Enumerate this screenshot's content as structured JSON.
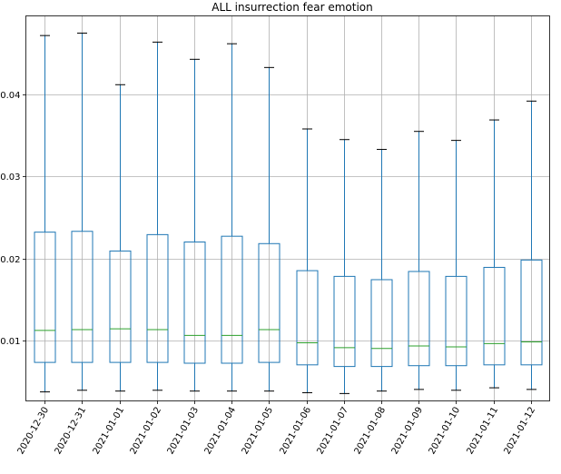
{
  "chart_data": {
    "type": "box",
    "title": "ALL insurrection fear emotion",
    "xlabel": "",
    "ylabel": "",
    "grid": true,
    "ylim": [
      0.0026,
      0.0496
    ],
    "yticks": [
      0.01,
      0.02,
      0.03,
      0.04
    ],
    "ytick_labels": [
      "0.01",
      "0.02",
      "0.03",
      "0.04"
    ],
    "categories": [
      "2020-12-30",
      "2020-12-31",
      "2021-01-01",
      "2021-01-02",
      "2021-01-03",
      "2021-01-04",
      "2021-01-05",
      "2021-01-06",
      "2021-01-07",
      "2021-01-08",
      "2021-01-09",
      "2021-01-10",
      "2021-01-11",
      "2021-01-12"
    ],
    "boxes": [
      {
        "whisker_low": 0.0037,
        "q1": 0.0073,
        "median": 0.0112,
        "q3": 0.0232,
        "whisker_high": 0.0472
      },
      {
        "whisker_low": 0.0039,
        "q1": 0.0073,
        "median": 0.0113,
        "q3": 0.0233,
        "whisker_high": 0.0475
      },
      {
        "whisker_low": 0.0038,
        "q1": 0.0073,
        "median": 0.0114,
        "q3": 0.0209,
        "whisker_high": 0.0412
      },
      {
        "whisker_low": 0.0039,
        "q1": 0.0073,
        "median": 0.0113,
        "q3": 0.0229,
        "whisker_high": 0.0464
      },
      {
        "whisker_low": 0.0038,
        "q1": 0.0072,
        "median": 0.0106,
        "q3": 0.022,
        "whisker_high": 0.0443
      },
      {
        "whisker_low": 0.0038,
        "q1": 0.0072,
        "median": 0.0106,
        "q3": 0.0227,
        "whisker_high": 0.0462
      },
      {
        "whisker_low": 0.0038,
        "q1": 0.0073,
        "median": 0.0113,
        "q3": 0.0218,
        "whisker_high": 0.0433
      },
      {
        "whisker_low": 0.0036,
        "q1": 0.007,
        "median": 0.0097,
        "q3": 0.0185,
        "whisker_high": 0.0358
      },
      {
        "whisker_low": 0.0035,
        "q1": 0.0068,
        "median": 0.0091,
        "q3": 0.0178,
        "whisker_high": 0.0345
      },
      {
        "whisker_low": 0.0038,
        "q1": 0.0068,
        "median": 0.009,
        "q3": 0.0174,
        "whisker_high": 0.0333
      },
      {
        "whisker_low": 0.004,
        "q1": 0.0069,
        "median": 0.0093,
        "q3": 0.0184,
        "whisker_high": 0.0355
      },
      {
        "whisker_low": 0.0039,
        "q1": 0.0069,
        "median": 0.0092,
        "q3": 0.0178,
        "whisker_high": 0.0344
      },
      {
        "whisker_low": 0.0042,
        "q1": 0.007,
        "median": 0.0096,
        "q3": 0.0189,
        "whisker_high": 0.0369
      },
      {
        "whisker_low": 0.004,
        "q1": 0.007,
        "median": 0.0098,
        "q3": 0.0198,
        "whisker_high": 0.0392
      }
    ],
    "colors": {
      "box": "#1f77b4",
      "median": "#2ca02c",
      "cap": "#000000",
      "grid": "#b0b0b0",
      "axis": "#000000",
      "text": "#000000"
    }
  }
}
